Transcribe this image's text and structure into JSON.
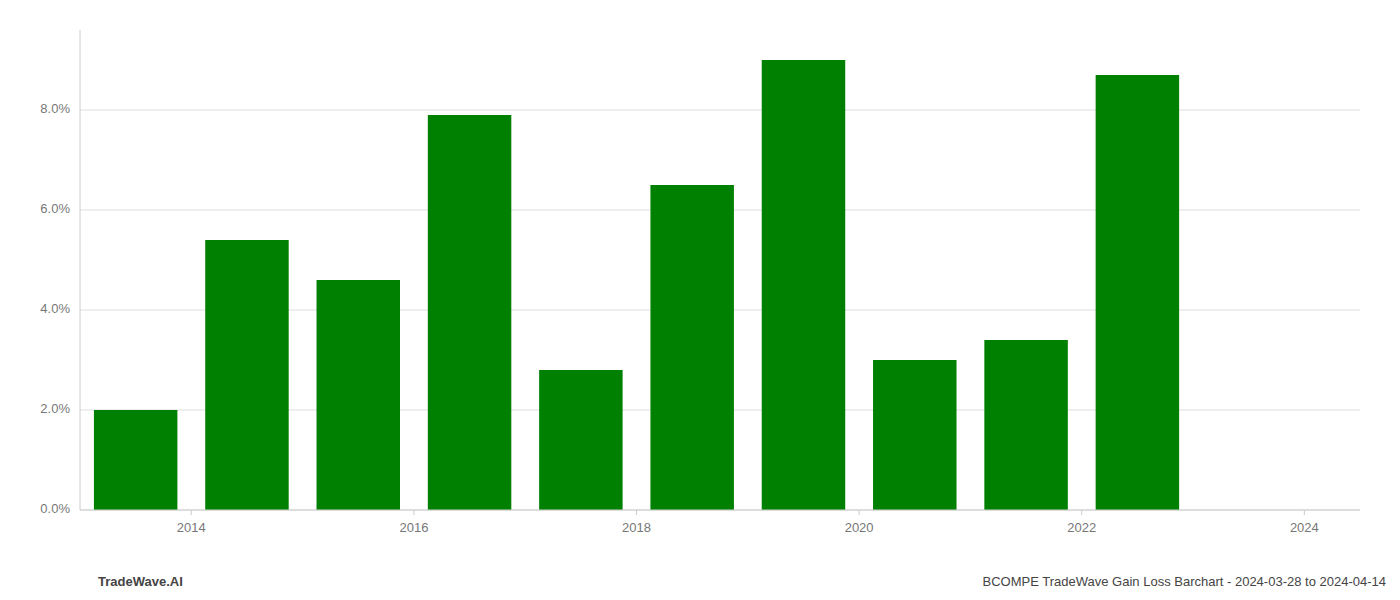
{
  "chart_data": {
    "type": "bar",
    "title": "BCOMPE TradeWave Gain Loss Barchart - 2024-03-28 to 2024-04-14",
    "annotations": [
      "TradeWave.AI"
    ],
    "x": [
      2013.5,
      2014.5,
      2015.5,
      2016.5,
      2017.5,
      2018.5,
      2019.5,
      2020.5,
      2021.5,
      2022.5
    ],
    "values": [
      0.02,
      0.054,
      0.046,
      0.079,
      0.028,
      0.065,
      0.09,
      0.03,
      0.034,
      0.087
    ],
    "color": "#008000",
    "xlim": [
      2013.0,
      2024.5
    ],
    "xticks": [
      2014,
      2016,
      2018,
      2020,
      2022,
      2024
    ],
    "ylim": [
      0,
      0.096
    ],
    "yticks": [
      {
        "value": 0.0,
        "label": "0.0%"
      },
      {
        "value": 0.02,
        "label": "2.0%"
      },
      {
        "value": 0.04,
        "label": "4.0%"
      },
      {
        "value": 0.06,
        "label": "6.0%"
      },
      {
        "value": 0.08,
        "label": "8.0%"
      }
    ],
    "grid": true
  }
}
